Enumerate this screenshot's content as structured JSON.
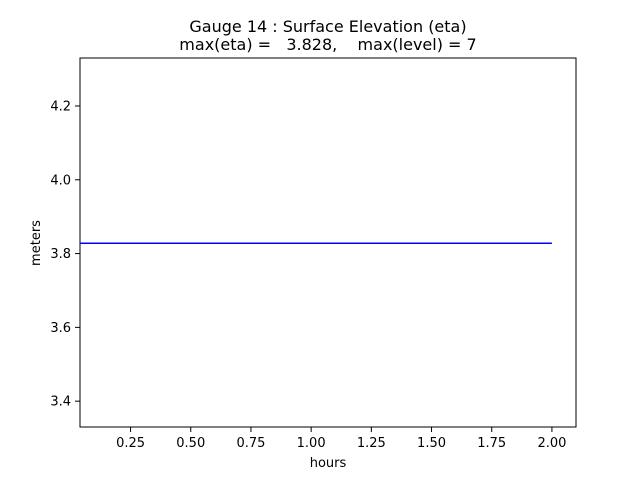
{
  "chart_data": {
    "type": "line",
    "title": "Gauge 14 : Surface Elevation (eta)",
    "subtitle": "max(eta) =   3.828,    max(level) = 7",
    "xlabel": "hours",
    "ylabel": "meters",
    "xlim": [
      0.04,
      2.1
    ],
    "ylim": [
      3.33,
      4.33
    ],
    "x_ticks": [
      0.25,
      0.5,
      0.75,
      1.0,
      1.25,
      1.5,
      1.75,
      2.0
    ],
    "x_tick_labels": [
      "0.25",
      "0.50",
      "0.75",
      "1.00",
      "1.25",
      "1.50",
      "1.75",
      "2.00"
    ],
    "y_ticks": [
      3.4,
      3.6,
      3.8,
      4.0,
      4.2
    ],
    "y_tick_labels": [
      "3.4",
      "3.6",
      "3.8",
      "4.0",
      "4.2"
    ],
    "grid": false,
    "series": [
      {
        "color": "#0000ff",
        "x": [
          0.0,
          2.0
        ],
        "y": [
          3.828,
          3.828
        ]
      }
    ]
  }
}
